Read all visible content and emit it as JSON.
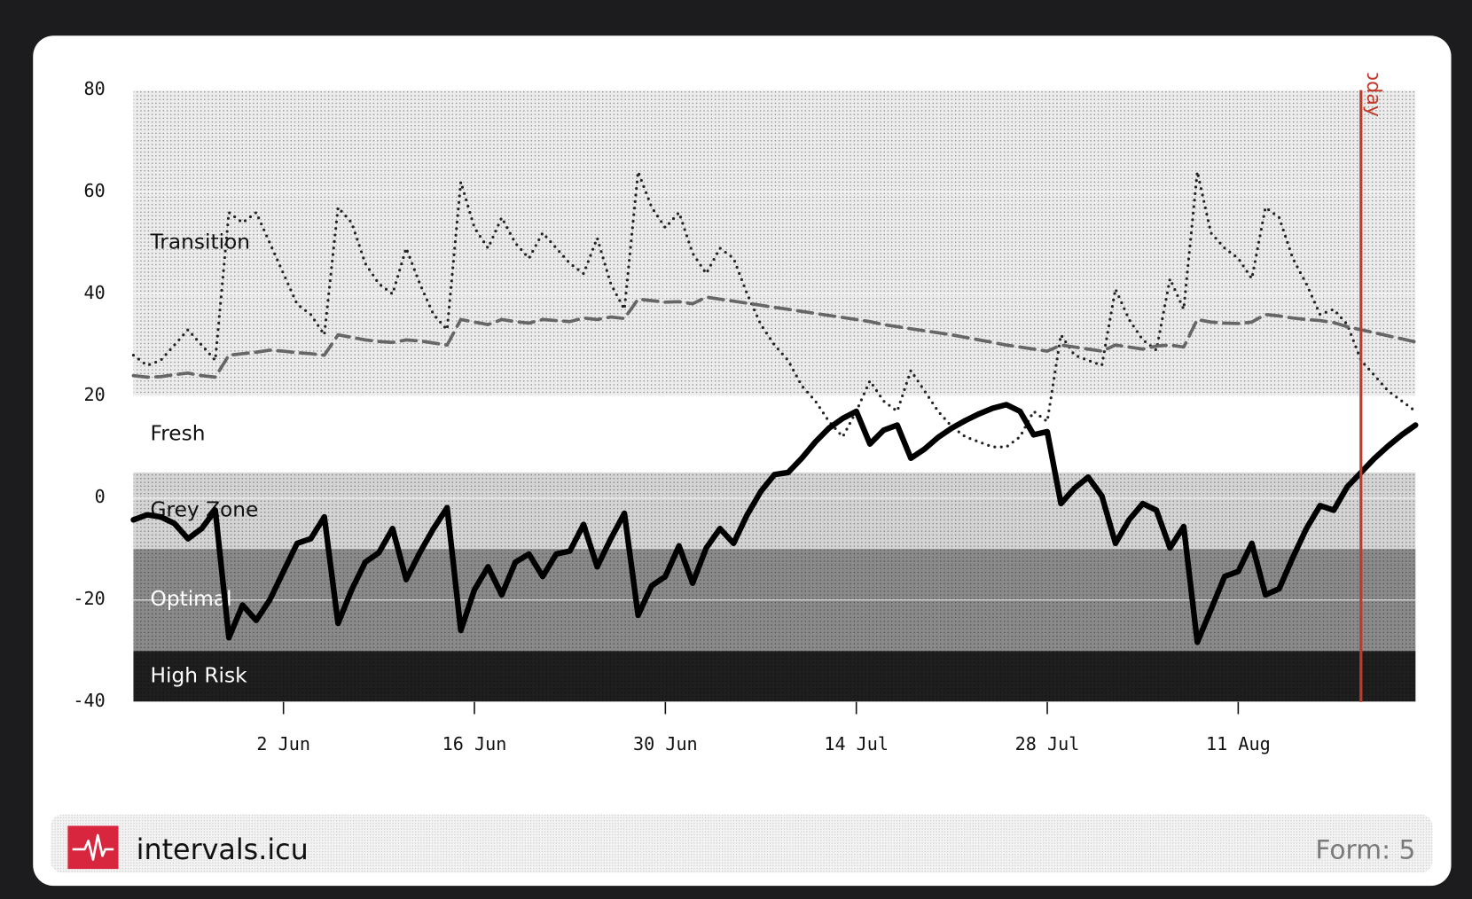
{
  "chart_data": {
    "type": "line",
    "categories": [
      null,
      null,
      null,
      null,
      null,
      null,
      null,
      null,
      null,
      null,
      null,
      "2 Jun",
      null,
      null,
      null,
      null,
      null,
      null,
      null,
      null,
      null,
      null,
      null,
      null,
      null,
      "16 Jun",
      null,
      null,
      null,
      null,
      null,
      null,
      null,
      null,
      null,
      null,
      null,
      null,
      null,
      "30 Jun",
      null,
      null,
      null,
      null,
      null,
      null,
      null,
      null,
      null,
      null,
      null,
      null,
      null,
      "14 Jul",
      null,
      null,
      null,
      null,
      null,
      null,
      null,
      null,
      null,
      null,
      null,
      null,
      null,
      "28 Jul",
      null,
      null,
      null,
      null,
      null,
      null,
      null,
      null,
      null,
      null,
      null,
      null,
      null,
      "11 Aug",
      null,
      null,
      null,
      null,
      null,
      null,
      null,
      null,
      null,
      null,
      null,
      null,
      null
    ],
    "series": [
      {
        "color": "#222222",
        "style": "dotted",
        "values": [
          28,
          26,
          27,
          30,
          33,
          30,
          27,
          56,
          54,
          56,
          50,
          44,
          38,
          36,
          32,
          57,
          54,
          46,
          42,
          40,
          49,
          42,
          36,
          33,
          62,
          53,
          49,
          55,
          50,
          47,
          52,
          49,
          46,
          44,
          51,
          42,
          37,
          64,
          57,
          53,
          56,
          48,
          44,
          49,
          47,
          40,
          34,
          30,
          27,
          22,
          19,
          15,
          12,
          17,
          23,
          19,
          17,
          25,
          21,
          17,
          14,
          12,
          11,
          10,
          10,
          12,
          17,
          15,
          32,
          28,
          27,
          26,
          41,
          35,
          31,
          29,
          43,
          37,
          64,
          52,
          49,
          47,
          43,
          57,
          55,
          47,
          42,
          36,
          37,
          34,
          27,
          24,
          21,
          19,
          17
        ]
      },
      {
        "color": "#666666",
        "style": "dashed",
        "values": [
          24,
          23.7,
          23.8,
          24.2,
          24.5,
          24,
          23.7,
          28,
          28.3,
          28.6,
          29,
          28.8,
          28.5,
          28.3,
          28,
          32,
          31.5,
          31,
          30.7,
          30.5,
          31,
          30.8,
          30.4,
          30,
          35,
          34.5,
          34,
          35,
          34.6,
          34.3,
          35,
          34.8,
          34.6,
          35.3,
          35,
          35.5,
          35.2,
          39,
          38.7,
          38.4,
          38.5,
          38.1,
          39.4,
          39,
          38.6,
          38.2,
          37.8,
          37.4,
          37,
          36.6,
          36.2,
          35.8,
          35.4,
          35,
          34.6,
          34,
          33.6,
          33.2,
          32.8,
          32.4,
          32,
          31.5,
          31,
          30.5,
          30,
          29.6,
          29.2,
          28.8,
          30,
          29.6,
          29.2,
          28.8,
          30,
          29.6,
          29.2,
          29.8,
          30,
          29.6,
          35,
          34.5,
          34.3,
          34.2,
          34.5,
          36,
          35.7,
          35.3,
          35,
          34.8,
          34.4,
          33.6,
          33,
          32.4,
          31.8,
          31.2,
          30.6
        ]
      },
      {
        "color": "#000000",
        "style": "solid",
        "values": [
          -4.3,
          -3.3,
          -3.7,
          -5,
          -8,
          -6,
          -2.4,
          -27.4,
          -21,
          -24,
          -20,
          -14.4,
          -8.9,
          -8,
          -3.7,
          -24.6,
          -18,
          -12.6,
          -10.7,
          -6,
          -16,
          -10.7,
          -6,
          -1.9,
          -26,
          -18,
          -13.5,
          -19,
          -12.6,
          -11,
          -15.4,
          -11,
          -10.4,
          -5.2,
          -13.5,
          -8,
          -3,
          -23,
          -17.2,
          -15.4,
          -9.4,
          -16.7,
          -9.8,
          -6,
          -8.9,
          -3.3,
          1.3,
          4.6,
          5,
          7.8,
          11,
          13.7,
          15.6,
          17,
          10.6,
          13.3,
          14.3,
          7.8,
          9.6,
          11.9,
          13.7,
          15.2,
          16.5,
          17.6,
          18.3,
          17,
          12.4,
          13,
          -1.1,
          1.9,
          4.1,
          0.4,
          -8.9,
          -4.3,
          -1.1,
          -2.4,
          -9.8,
          -5.6,
          -28.3,
          -21.9,
          -15.4,
          -14.4,
          -8.9,
          -19,
          -17.8,
          -11.7,
          -6,
          -1.5,
          -2.4,
          2.2,
          5,
          7.8,
          10.2,
          12.4,
          14.3
        ]
      }
    ],
    "zones": [
      {
        "name": "Transition",
        "from": 20,
        "to": 80,
        "color": "#ececec",
        "texture": true,
        "label_color": "#111111"
      },
      {
        "name": "Fresh",
        "from": 5,
        "to": 20,
        "color": "#ffffff",
        "texture": false,
        "label_color": "#111111"
      },
      {
        "name": "Grey Zone",
        "from": -10,
        "to": 5,
        "color": "#d4d4d4",
        "texture": true,
        "label_color": "#111111"
      },
      {
        "name": "Optimal",
        "from": -30,
        "to": -10,
        "color": "#8a8a8a",
        "texture": true,
        "label_color": "#ffffff"
      },
      {
        "name": "High Risk",
        "from": -40,
        "to": -30,
        "color": "#1e1e1e",
        "texture": true,
        "label_color": "#ffffff"
      }
    ],
    "annotations": [
      {
        "text": "Today",
        "index": 90,
        "color": "#c0392b"
      }
    ],
    "ylim": [
      -40,
      80
    ],
    "yticks": [
      -40,
      -20,
      0,
      20,
      40,
      60,
      80
    ],
    "grid": true
  },
  "footer": {
    "brand": "intervals.icu",
    "status": "Form: 5"
  }
}
